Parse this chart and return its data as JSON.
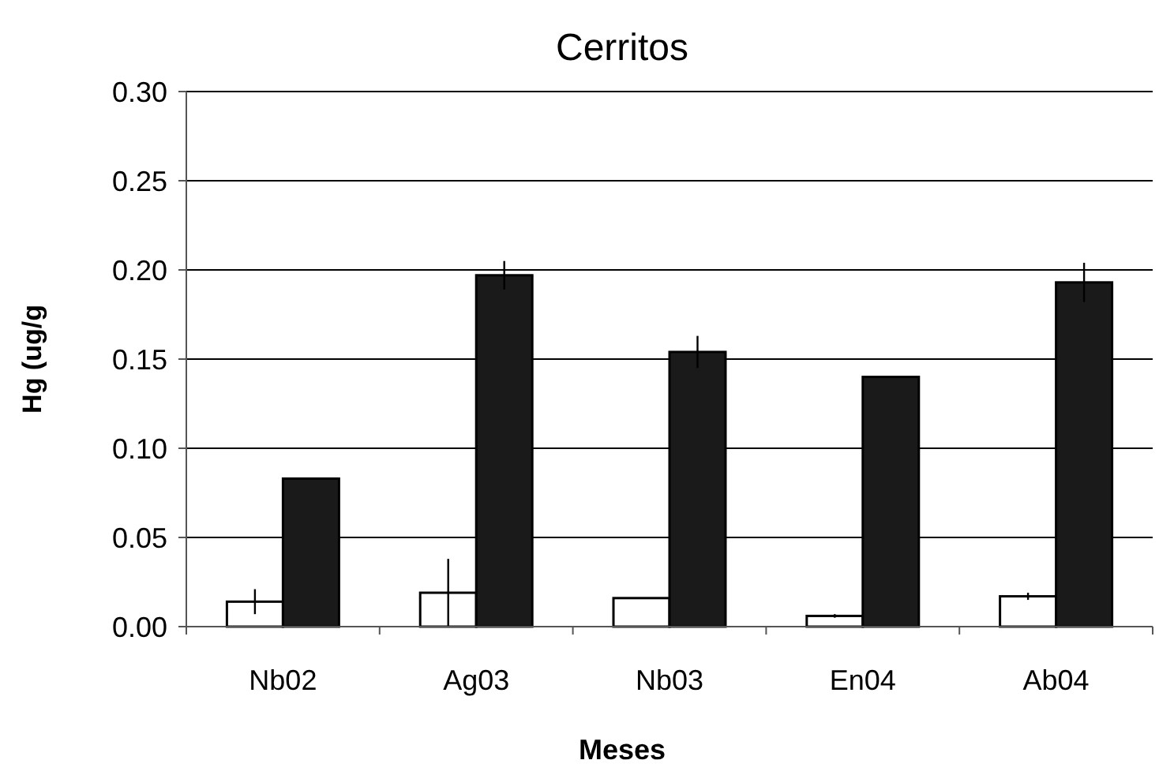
{
  "chart_data": {
    "type": "bar",
    "title": "Cerritos",
    "xlabel": "Meses",
    "ylabel": "Hg (ug/g",
    "categories": [
      "Nb02",
      "Ag03",
      "Nb03",
      "En04",
      "Ab04"
    ],
    "series": [
      {
        "color": "#ffffff",
        "values": [
          0.014,
          0.019,
          0.016,
          0.006,
          0.017
        ],
        "errors": [
          0.007,
          0.019,
          null,
          0.001,
          0.002
        ]
      },
      {
        "color": "#1a1a1a",
        "values": [
          0.083,
          0.197,
          0.154,
          0.14,
          0.193
        ],
        "errors": [
          null,
          0.008,
          0.009,
          null,
          0.011
        ]
      }
    ],
    "ylim": [
      0,
      0.3
    ],
    "yticks": [
      {
        "value": 0,
        "label": "0.00"
      },
      {
        "value": 0.05,
        "label": "0.05"
      },
      {
        "value": 0.1,
        "label": "0.10"
      },
      {
        "value": 0.15,
        "label": "0.15"
      },
      {
        "value": 0.2,
        "label": "0.20"
      },
      {
        "value": 0.25,
        "label": "0.25"
      },
      {
        "value": 0.3,
        "label": "0.30"
      }
    ],
    "grid": "y"
  }
}
